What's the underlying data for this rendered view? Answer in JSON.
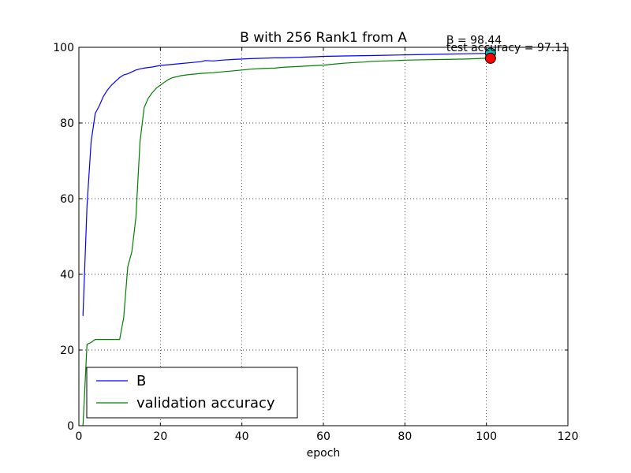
{
  "chart_data": {
    "type": "line",
    "title": "B with 256 Rank1 from A",
    "xlabel": "epoch",
    "ylabel": "",
    "xlim": [
      0,
      120
    ],
    "ylim": [
      0,
      100
    ],
    "xticks": [
      0,
      20,
      40,
      60,
      80,
      100,
      120
    ],
    "yticks": [
      0,
      20,
      40,
      60,
      80,
      100
    ],
    "grid": true,
    "legend_position": "lower-left",
    "series": [
      {
        "name": "B",
        "color": "#0000ff",
        "points": [
          [
            1,
            29
          ],
          [
            2,
            58
          ],
          [
            3,
            75
          ],
          [
            4,
            82.5
          ],
          [
            5,
            84.5
          ],
          [
            6,
            87
          ],
          [
            7,
            88.7
          ],
          [
            8,
            90
          ],
          [
            9,
            91
          ],
          [
            10,
            92
          ],
          [
            11,
            92.7
          ],
          [
            12,
            93
          ],
          [
            13,
            93.5
          ],
          [
            14,
            94
          ],
          [
            15,
            94.3
          ],
          [
            16,
            94.5
          ],
          [
            18,
            94.8
          ],
          [
            20,
            95.2
          ],
          [
            22,
            95.4
          ],
          [
            25,
            95.7
          ],
          [
            28,
            96
          ],
          [
            30,
            96.2
          ],
          [
            31,
            96.5
          ],
          [
            33,
            96.4
          ],
          [
            35,
            96.6
          ],
          [
            38,
            96.8
          ],
          [
            40,
            96.9
          ],
          [
            42,
            97
          ],
          [
            45,
            97.1
          ],
          [
            48,
            97.2
          ],
          [
            50,
            97.2
          ],
          [
            52,
            97.3
          ],
          [
            55,
            97.4
          ],
          [
            58,
            97.5
          ],
          [
            60,
            97.6
          ],
          [
            65,
            97.7
          ],
          [
            70,
            97.8
          ],
          [
            75,
            97.9
          ],
          [
            80,
            98
          ],
          [
            85,
            98.1
          ],
          [
            90,
            98.2
          ],
          [
            95,
            98.3
          ],
          [
            100,
            98.4
          ],
          [
            101,
            98.44
          ]
        ]
      },
      {
        "name": "validation accuracy",
        "color": "#008000",
        "points": [
          [
            1,
            0
          ],
          [
            2,
            21.5
          ],
          [
            3,
            22
          ],
          [
            4,
            22.8
          ],
          [
            5,
            22.8
          ],
          [
            6,
            22.8
          ],
          [
            7,
            22.8
          ],
          [
            8,
            22.8
          ],
          [
            9,
            22.8
          ],
          [
            10,
            22.8
          ],
          [
            11,
            28.5
          ],
          [
            12,
            42
          ],
          [
            13,
            46
          ],
          [
            14,
            55
          ],
          [
            15,
            75
          ],
          [
            16,
            84
          ],
          [
            17,
            86.5
          ],
          [
            18,
            88
          ],
          [
            19,
            89.2
          ],
          [
            20,
            90
          ],
          [
            21,
            90.8
          ],
          [
            22,
            91.5
          ],
          [
            23,
            92
          ],
          [
            24,
            92.2
          ],
          [
            25,
            92.5
          ],
          [
            27,
            92.8
          ],
          [
            30,
            93.1
          ],
          [
            33,
            93.3
          ],
          [
            35,
            93.5
          ],
          [
            38,
            93.8
          ],
          [
            40,
            94
          ],
          [
            42,
            94.2
          ],
          [
            45,
            94.4
          ],
          [
            48,
            94.5
          ],
          [
            50,
            94.7
          ],
          [
            55,
            95
          ],
          [
            60,
            95.3
          ],
          [
            63,
            95.6
          ],
          [
            65,
            95.8
          ],
          [
            68,
            96
          ],
          [
            70,
            96.1
          ],
          [
            72,
            96.3
          ],
          [
            75,
            96.4
          ],
          [
            78,
            96.5
          ],
          [
            80,
            96.6
          ],
          [
            85,
            96.7
          ],
          [
            90,
            96.8
          ],
          [
            95,
            96.9
          ],
          [
            100,
            97.1
          ],
          [
            101,
            97.11
          ]
        ]
      }
    ],
    "markers": [
      {
        "x": 101,
        "y": 98.44,
        "color": "#00bfbf",
        "label": "B = 98.44"
      },
      {
        "x": 101,
        "y": 97.11,
        "color": "#ff0000",
        "label": "test accuracy = 97.11"
      }
    ]
  }
}
